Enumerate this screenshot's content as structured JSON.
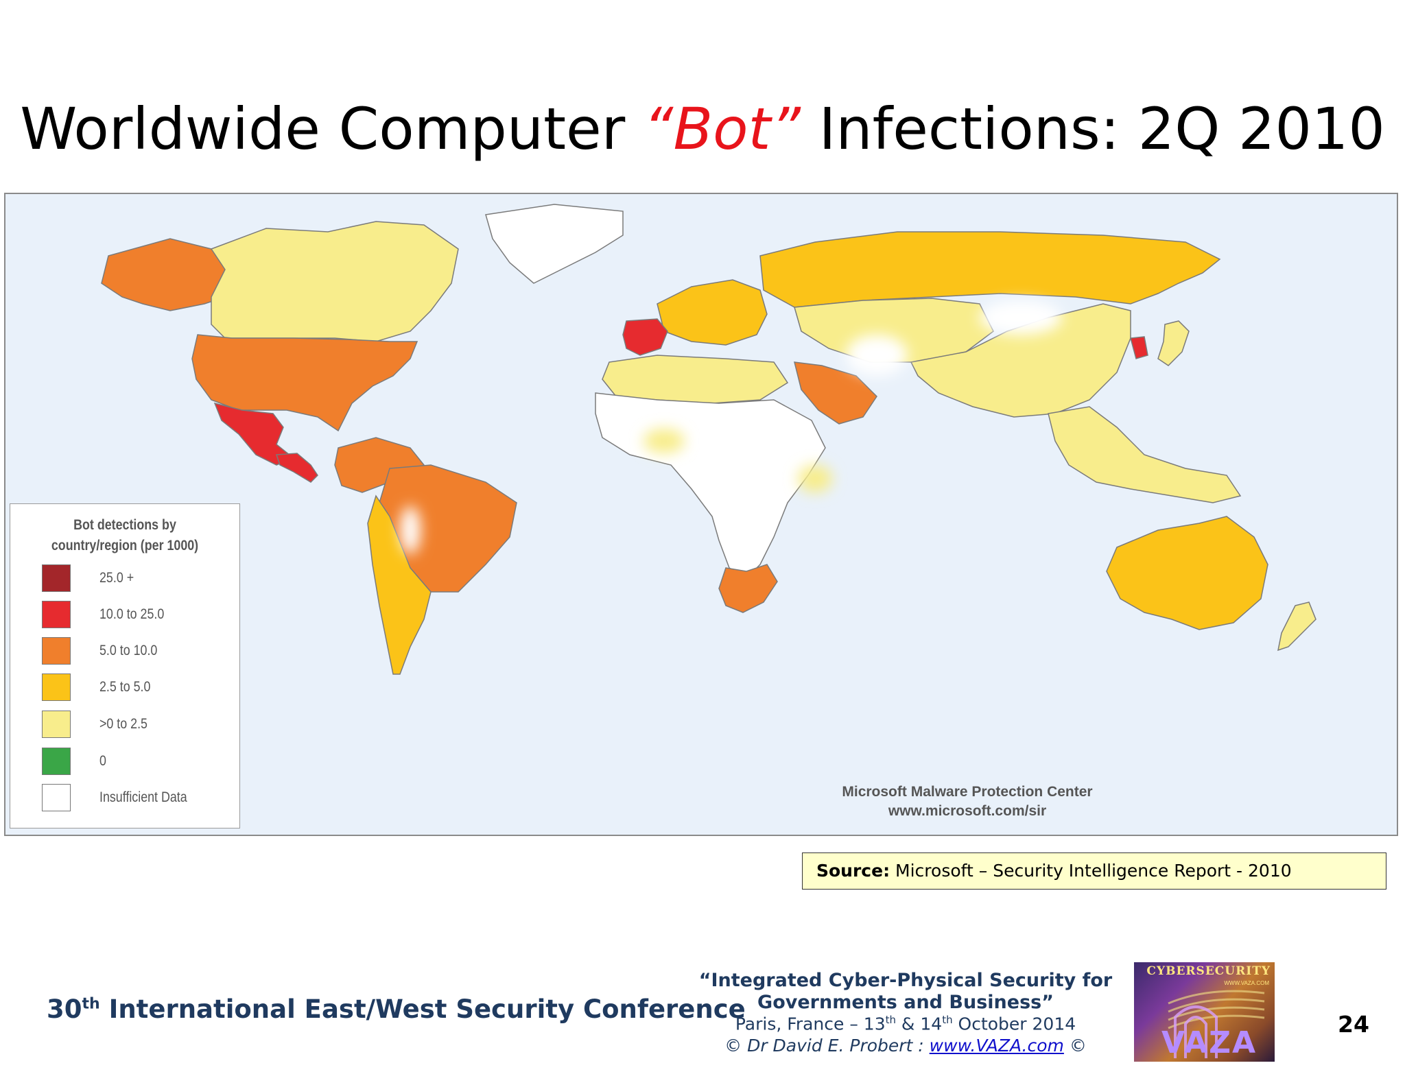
{
  "title": {
    "before": "Worldwide Computer ",
    "accent": "“Bot”",
    "after": " Infections: 2Q 2010"
  },
  "legend": {
    "title_line1": "Bot detections by",
    "title_line2": "country/region (per 1000)",
    "items": [
      {
        "label": "25.0 +",
        "color": "#a3262a"
      },
      {
        "label": "10.0 to 25.0",
        "color": "#e62b2f"
      },
      {
        "label": "5.0 to 10.0",
        "color": "#f07f2c"
      },
      {
        "label": "2.5 to 5.0",
        "color": "#fbc318"
      },
      {
        "label": ">0 to 2.5",
        "color": "#f8ed8c"
      },
      {
        "label": "0",
        "color": "#3aa647"
      },
      {
        "label": "Insufficient Data",
        "color": "#ffffff"
      }
    ]
  },
  "map_credit": {
    "line1": "Microsoft Malware Protection Center",
    "line2": "www.microsoft.com/sir"
  },
  "source": {
    "label": "Source:",
    "text": " Microsoft – Security Intelligence Report - 2010"
  },
  "footer": {
    "conference_ordinal": "30",
    "conference_sup": "th",
    "conference_rest": " International East/West Security Conference",
    "event_line1": "“Integrated Cyber-Physical Security for",
    "event_line2": "Governments and Business”",
    "event_place": "Paris, France – 13",
    "event_sup1": "th",
    "event_mid": " & 14",
    "event_sup2": "th",
    "event_end": " October 2014",
    "copyright_pre": "©  Dr David E. Probert   :  ",
    "link": "www.VAZA.com",
    "copyright_post": "  ©",
    "logo_top": "CYBERSECURITY",
    "logo_url": "WWW.VAZA.COM",
    "logo_main": "VAZA",
    "page_number": "24"
  },
  "colors": {
    "ocean": "#e9f1fa",
    "bins": {
      "very_high": "#a3262a",
      "high": "#e62b2f",
      "mid": "#f07f2c",
      "lowmid": "#fbc318",
      "low": "#f8ed8c",
      "insufficient": "#ffffff"
    }
  },
  "regions": [
    {
      "name": "Alaska",
      "bin": "mid"
    },
    {
      "name": "Canada",
      "bin": "low"
    },
    {
      "name": "Greenland",
      "bin": "insufficient"
    },
    {
      "name": "United States",
      "bin": "mid"
    },
    {
      "name": "Mexico",
      "bin": "high"
    },
    {
      "name": "Central America",
      "bin": "high"
    },
    {
      "name": "South America North",
      "bin": "mid"
    },
    {
      "name": "Brazil",
      "bin": "mid"
    },
    {
      "name": "Southern Cone",
      "bin": "lowmid"
    },
    {
      "name": "Western Europe",
      "bin": "lowmid"
    },
    {
      "name": "Spain",
      "bin": "high"
    },
    {
      "name": "Russia",
      "bin": "lowmid"
    },
    {
      "name": "Central Asia",
      "bin": "low"
    },
    {
      "name": "Saudi Arabia",
      "bin": "mid"
    },
    {
      "name": "North Africa",
      "bin": "low"
    },
    {
      "name": "Sahel / Central Africa",
      "bin": "insufficient"
    },
    {
      "name": "South Africa",
      "bin": "mid"
    },
    {
      "name": "China",
      "bin": "low"
    },
    {
      "name": "South Korea",
      "bin": "high"
    },
    {
      "name": "Japan",
      "bin": "low"
    },
    {
      "name": "Southeast Asia",
      "bin": "low"
    },
    {
      "name": "Australia",
      "bin": "lowmid"
    },
    {
      "name": "New Zealand",
      "bin": "low"
    }
  ]
}
